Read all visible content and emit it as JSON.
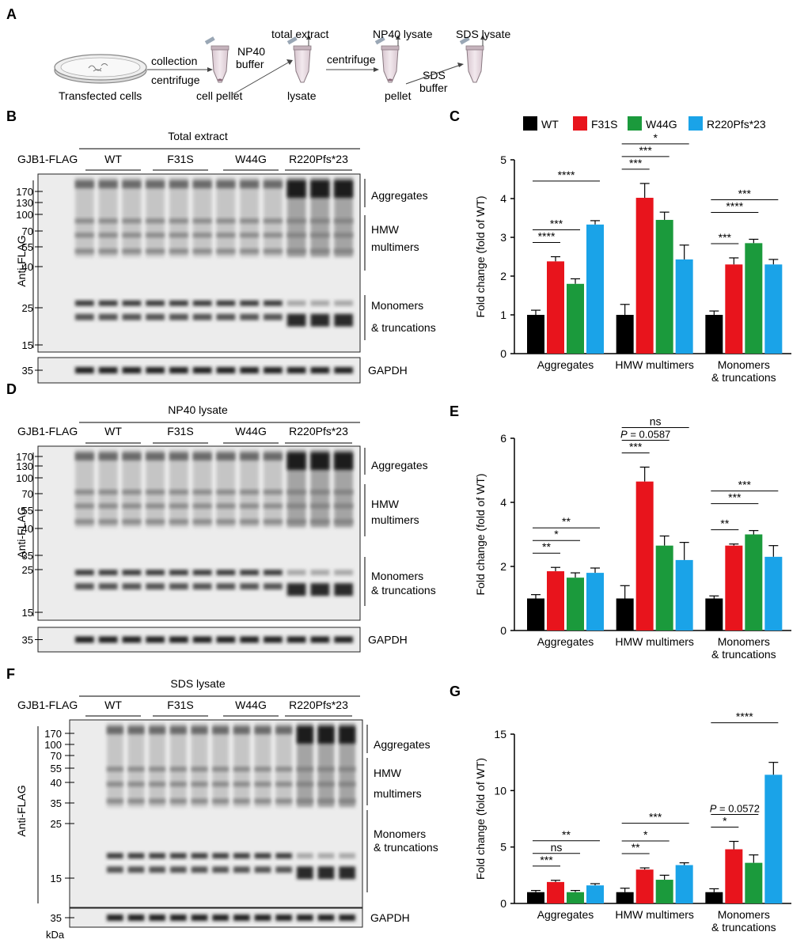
{
  "panel_letters": {
    "A": "A",
    "B": "B",
    "C": "C",
    "D": "D",
    "E": "E",
    "F": "F",
    "G": "G"
  },
  "workflow": {
    "cells": "Transfected cells",
    "step1": [
      "collection",
      "centrifuge"
    ],
    "pellet1": "cell pellet",
    "np40_buffer": [
      "NP40",
      "buffer"
    ],
    "total_extract": "total extract",
    "lysate": "lysate",
    "centrifuge2": "centrifuge",
    "np40_lysate": "NP40 lysate",
    "pellet2": "pellet",
    "sds_buffer": [
      "SDS",
      "buffer"
    ],
    "sds_lysate": "SDS lysate"
  },
  "legend": [
    {
      "name": "WT",
      "color": "#000000"
    },
    {
      "name": "F31S",
      "color": "#e8141c"
    },
    {
      "name": "W44G",
      "color": "#1b9a3c"
    },
    {
      "name": "R220Pfs*23",
      "color": "#1aa3e8"
    }
  ],
  "blots": [
    {
      "title": "Total extract",
      "row_label": "GJB1-FLAG",
      "groups": [
        "WT",
        "F31S",
        "W44G",
        "R220Pfs*23"
      ],
      "antibody": "Anti-FLAG",
      "markers": [
        "170",
        "130",
        "100",
        "70",
        "55",
        "40",
        "25",
        "15"
      ],
      "regions": [
        "Aggregates",
        "HMW multimers",
        "Monomers",
        "& truncations"
      ],
      "loading_marker": "35",
      "loading_label": "GAPDH"
    },
    {
      "title": "NP40 lysate",
      "row_label": "GJB1-FLAG",
      "groups": [
        "WT",
        "F31S",
        "W44G",
        "R220Pfs*23"
      ],
      "antibody": "Anti-FLAG",
      "markers": [
        "170",
        "130",
        "100",
        "70",
        "55",
        "40",
        "35",
        "25",
        "15"
      ],
      "regions": [
        "Aggregates",
        "HMW multimers",
        "Monomers",
        "& truncations"
      ],
      "loading_marker": "35",
      "loading_label": "GAPDH"
    },
    {
      "title": "SDS lysate",
      "row_label": "GJB1-FLAG",
      "groups": [
        "WT",
        "F31S",
        "W44G",
        "R220Pfs*23"
      ],
      "antibody": "Anti-FLAG",
      "markers": [
        "170",
        "100",
        "70",
        "55",
        "40",
        "35",
        "25",
        "15"
      ],
      "regions": [
        "Aggregates",
        "HMW multimers",
        "Monomers",
        "& truncations"
      ],
      "loading_marker": "35",
      "loading_label": "GAPDH",
      "unit": "kDa"
    }
  ],
  "chart_data": [
    {
      "type": "bar",
      "panel": "C",
      "ylabel": "Fold change (fold of WT)",
      "ylim": [
        0,
        5
      ],
      "yticks": [
        0,
        1,
        2,
        3,
        4,
        5
      ],
      "categories": [
        "Aggregates",
        "HMW multimers",
        "Monomers & truncations"
      ],
      "category_lines": [
        [
          "Aggregates"
        ],
        [
          "HMW multimers"
        ],
        [
          "Monomers",
          "& truncations"
        ]
      ],
      "series": [
        {
          "name": "WT",
          "values": [
            1.0,
            1.0,
            1.0
          ],
          "errors": [
            0.12,
            0.27,
            0.1
          ]
        },
        {
          "name": "F31S",
          "values": [
            2.38,
            4.02,
            2.3
          ],
          "errors": [
            0.12,
            0.37,
            0.17
          ]
        },
        {
          "name": "W44G",
          "values": [
            1.8,
            3.45,
            2.85
          ],
          "errors": [
            0.13,
            0.2,
            0.1
          ]
        },
        {
          "name": "R220Pfs*23",
          "values": [
            3.33,
            2.43,
            2.3
          ],
          "errors": [
            0.1,
            0.37,
            0.13
          ]
        }
      ],
      "annotations": [
        {
          "category": 0,
          "to": 1,
          "label": "****",
          "level": 0
        },
        {
          "category": 0,
          "to": 2,
          "label": "***",
          "level": 1
        },
        {
          "category": 0,
          "to": 3,
          "label": "****",
          "level": 2
        },
        {
          "category": 1,
          "to": 1,
          "label": "***",
          "level": 0
        },
        {
          "category": 1,
          "to": 2,
          "label": "***",
          "level": 1
        },
        {
          "category": 1,
          "to": 3,
          "label": "*",
          "level": 2
        },
        {
          "category": 2,
          "to": 1,
          "label": "***",
          "level": 0
        },
        {
          "category": 2,
          "to": 2,
          "label": "****",
          "level": 1
        },
        {
          "category": 2,
          "to": 3,
          "label": "***",
          "level": 2
        }
      ]
    },
    {
      "type": "bar",
      "panel": "E",
      "ylabel": "Fold change (fold of WT)",
      "ylim": [
        0,
        6
      ],
      "yticks": [
        0,
        2,
        4,
        6
      ],
      "categories": [
        "Aggregates",
        "HMW multimers",
        "Monomers & truncations"
      ],
      "category_lines": [
        [
          "Aggregates"
        ],
        [
          "HMW multimers"
        ],
        [
          "Monomers",
          "& truncations"
        ]
      ],
      "series": [
        {
          "name": "WT",
          "values": [
            1.0,
            1.0,
            1.0
          ],
          "errors": [
            0.12,
            0.4,
            0.08
          ]
        },
        {
          "name": "F31S",
          "values": [
            1.85,
            4.65,
            2.65
          ],
          "errors": [
            0.12,
            0.45,
            0.05
          ]
        },
        {
          "name": "W44G",
          "values": [
            1.65,
            2.65,
            3.0
          ],
          "errors": [
            0.15,
            0.3,
            0.12
          ]
        },
        {
          "name": "R220Pfs*23",
          "values": [
            1.8,
            2.2,
            2.3
          ],
          "errors": [
            0.15,
            0.55,
            0.35
          ]
        }
      ],
      "annotations": [
        {
          "category": 0,
          "to": 1,
          "label": "**",
          "level": 0
        },
        {
          "category": 0,
          "to": 2,
          "label": "*",
          "level": 1
        },
        {
          "category": 0,
          "to": 3,
          "label": "**",
          "level": 2
        },
        {
          "category": 1,
          "to": 1,
          "label": "***",
          "level": 0
        },
        {
          "category": 1,
          "to": 2,
          "label": "P = 0.0587",
          "level": 1,
          "italicP": true
        },
        {
          "category": 1,
          "to": 3,
          "label": "ns",
          "level": 2
        },
        {
          "category": 2,
          "to": 1,
          "label": "**",
          "level": 0
        },
        {
          "category": 2,
          "to": 2,
          "label": "***",
          "level": 1
        },
        {
          "category": 2,
          "to": 3,
          "label": "***",
          "level": 2
        }
      ]
    },
    {
      "type": "bar",
      "panel": "G",
      "ylabel": "Fold change (fold of WT)",
      "ylim": [
        0,
        15
      ],
      "yticks": [
        0,
        5,
        10,
        15
      ],
      "categories": [
        "Aggregates",
        "HMW multimers",
        "Monomers & truncations"
      ],
      "category_lines": [
        [
          "Aggregates"
        ],
        [
          "HMW multimers"
        ],
        [
          "Monomers",
          "& truncations"
        ]
      ],
      "series": [
        {
          "name": "WT",
          "values": [
            1.0,
            1.0,
            1.0
          ],
          "errors": [
            0.15,
            0.35,
            0.3
          ]
        },
        {
          "name": "F31S",
          "values": [
            1.9,
            3.0,
            4.8
          ],
          "errors": [
            0.15,
            0.15,
            0.7
          ]
        },
        {
          "name": "W44G",
          "values": [
            1.0,
            2.1,
            3.6
          ],
          "errors": [
            0.15,
            0.4,
            0.7
          ]
        },
        {
          "name": "R220Pfs*23",
          "values": [
            1.6,
            3.4,
            11.4
          ],
          "errors": [
            0.15,
            0.2,
            1.1
          ]
        }
      ],
      "annotations": [
        {
          "category": 0,
          "to": 1,
          "label": "***",
          "level": 0
        },
        {
          "category": 0,
          "to": 2,
          "label": "ns",
          "level": 1
        },
        {
          "category": 0,
          "to": 3,
          "label": "**",
          "level": 2
        },
        {
          "category": 1,
          "to": 1,
          "label": "**",
          "level": 0
        },
        {
          "category": 1,
          "to": 2,
          "label": "*",
          "level": 1
        },
        {
          "category": 1,
          "to": 3,
          "label": "***",
          "level": 2
        },
        {
          "category": 2,
          "to": 1,
          "label": "*",
          "level": 0
        },
        {
          "category": 2,
          "to": 2,
          "label": "P = 0.0572",
          "level": 1,
          "italicP": true
        },
        {
          "category": 2,
          "to": 3,
          "label": "****",
          "level": 2
        }
      ]
    }
  ]
}
